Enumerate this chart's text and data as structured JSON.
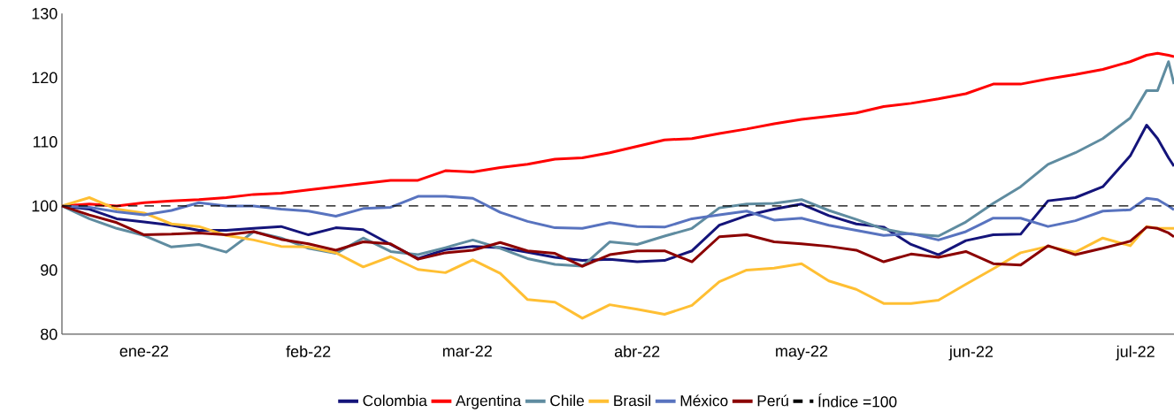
{
  "chart_data": {
    "type": "line",
    "marker": "none",
    "line_style": "solid",
    "legend": "bottom",
    "x": [
      "2022-01-01",
      "2022-01-06",
      "2022-01-11",
      "2022-01-16",
      "2022-01-21",
      "2022-01-26",
      "2022-01-31",
      "2022-02-05",
      "2022-02-10",
      "2022-02-15",
      "2022-02-20",
      "2022-02-25",
      "2022-03-02",
      "2022-03-07",
      "2022-03-12",
      "2022-03-17",
      "2022-03-22",
      "2022-03-27",
      "2022-04-01",
      "2022-04-06",
      "2022-04-11",
      "2022-04-16",
      "2022-04-21",
      "2022-04-26",
      "2022-05-01",
      "2022-05-06",
      "2022-05-11",
      "2022-05-16",
      "2022-05-21",
      "2022-05-26",
      "2022-05-31",
      "2022-06-05",
      "2022-06-10",
      "2022-06-15",
      "2022-06-20",
      "2022-06-25",
      "2022-06-30",
      "2022-07-05",
      "2022-07-10",
      "2022-07-15",
      "2022-07-18",
      "2022-07-20",
      "2022-07-22",
      "2022-07-23"
    ],
    "series": [
      {
        "name": "Colombia",
        "color": "#14147a",
        "values": [
          100,
          99.5,
          98,
          97.5,
          97,
          96.2,
          96.2,
          96.5,
          96.8,
          95.5,
          96.6,
          96.3,
          94,
          91.8,
          93.2,
          93.7,
          93.5,
          92.8,
          92,
          91.5,
          91.7,
          91.3,
          91.5,
          93,
          97,
          98.5,
          99.5,
          100.3,
          98.5,
          97.2,
          96.7,
          94,
          92.4,
          94.6,
          95.5,
          95.6,
          100.8,
          101.3,
          103,
          107.8,
          112.6,
          110.5,
          107.5,
          106.2
        ]
      },
      {
        "name": "Argentina",
        "color": "#ff0000",
        "values": [
          100,
          100.3,
          100,
          100.5,
          100.8,
          101,
          101.3,
          101.8,
          102,
          102.5,
          103,
          103.5,
          104,
          104,
          105.5,
          105.3,
          106,
          106.5,
          107.3,
          107.5,
          108.3,
          109.3,
          110.3,
          110.5,
          111.3,
          112,
          112.8,
          113.5,
          114,
          114.5,
          115.5,
          116,
          116.7,
          117.5,
          119,
          119,
          119.8,
          120.5,
          121.3,
          122.5,
          123.5,
          123.8,
          123.5,
          123.3
        ]
      },
      {
        "name": "Chile",
        "color": "#5f8ca0",
        "values": [
          100,
          98,
          96.5,
          95.4,
          93.6,
          94,
          92.8,
          96,
          95,
          93.4,
          92.6,
          95,
          92.9,
          92.4,
          93.5,
          94.7,
          93.4,
          91.8,
          90.9,
          90.6,
          94.4,
          94,
          95.3,
          96.5,
          99.7,
          100.3,
          100.4,
          101,
          99.3,
          97.9,
          96.4,
          95.6,
          95.3,
          97.5,
          100.4,
          103,
          106.5,
          108.3,
          110.5,
          113.7,
          118,
          118,
          122.5,
          119
        ]
      },
      {
        "name": "Brasil",
        "color": "#ffbf33",
        "values": [
          100,
          101.3,
          99.5,
          98.9,
          97.2,
          96.8,
          95.4,
          94.7,
          93.7,
          93.6,
          92.7,
          90.5,
          92.1,
          90.1,
          89.6,
          91.6,
          89.5,
          85.4,
          85,
          82.5,
          84.6,
          83.9,
          83.1,
          84.5,
          88.2,
          90,
          90.3,
          91,
          88.3,
          87,
          84.8,
          84.8,
          85.3,
          87.8,
          90.2,
          92.7,
          93.7,
          92.8,
          95,
          93.8,
          96.8,
          96.5,
          96.5,
          96.5
        ]
      },
      {
        "name": "México",
        "color": "#5873bf",
        "values": [
          100,
          99.8,
          99.1,
          98.6,
          99.3,
          100.5,
          100,
          100,
          99.5,
          99.2,
          98.4,
          99.6,
          99.8,
          101.5,
          101.5,
          101.2,
          99,
          97.6,
          96.6,
          96.5,
          97.4,
          96.8,
          96.7,
          98,
          98.6,
          99.2,
          97.8,
          98.1,
          97,
          96.2,
          95.4,
          95.7,
          94.7,
          96,
          98.1,
          98.1,
          96.8,
          97.7,
          99.2,
          99.4,
          101.2,
          101,
          100,
          99.4
        ]
      },
      {
        "name": "Perú",
        "color": "#8b0000",
        "values": [
          100,
          98.6,
          97.4,
          95.5,
          95.6,
          95.8,
          95.5,
          96,
          94.8,
          94.1,
          93.1,
          94.4,
          94.1,
          91.7,
          92.7,
          93.1,
          94.3,
          93,
          92.6,
          90.6,
          92.4,
          93,
          93,
          91.3,
          95.2,
          95.5,
          94.4,
          94.1,
          93.7,
          93.1,
          91.3,
          92.5,
          92,
          92.9,
          91,
          90.8,
          93.8,
          92.4,
          93.4,
          94.5,
          96.7,
          96.5,
          95.8,
          95.2
        ]
      }
    ],
    "ref_lines": [
      {
        "axis": "y",
        "value": 100,
        "label": "Índice =100",
        "color": "#000000",
        "line_style": "dashed"
      }
    ],
    "xlim": [
      "2022-01-01",
      "2022-07-23"
    ],
    "xticks": [
      {
        "value": "2022-01-16",
        "label": "ene-22"
      },
      {
        "value": "2022-02-15",
        "label": "feb-22"
      },
      {
        "value": "2022-03-16",
        "label": "mar-22"
      },
      {
        "value": "2022-04-16",
        "label": "abr-22"
      },
      {
        "value": "2022-05-16",
        "label": "may-22"
      },
      {
        "value": "2022-06-16",
        "label": "jun-22"
      },
      {
        "value": "2022-07-16",
        "label": "jul-22"
      }
    ],
    "ylim": [
      80,
      130
    ],
    "yticks": [
      80,
      90,
      100,
      110,
      120,
      130
    ]
  }
}
